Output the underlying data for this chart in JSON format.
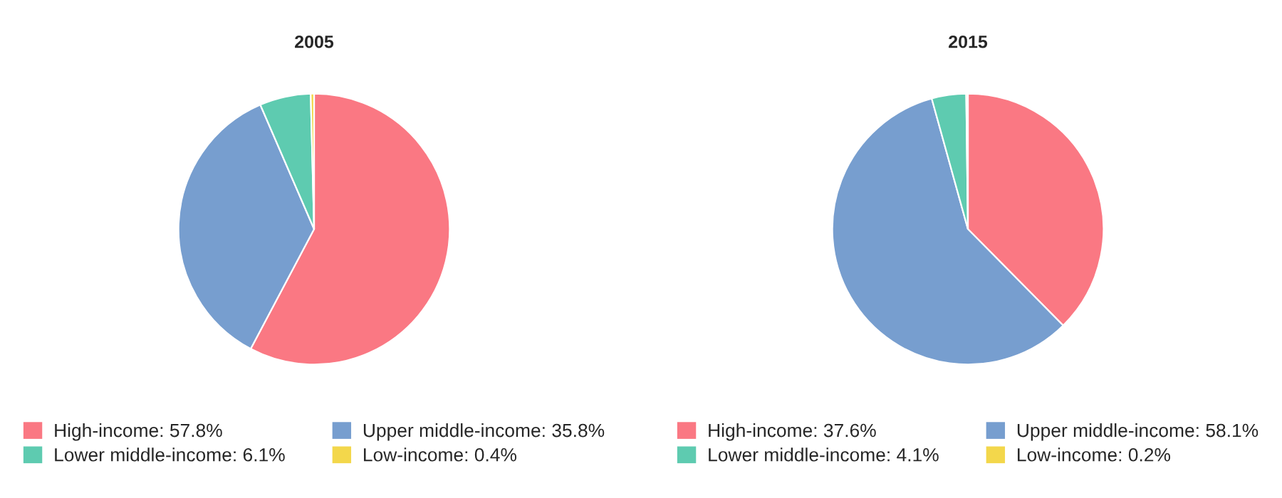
{
  "chart_data": [
    {
      "type": "pie",
      "title": "2005",
      "categories": [
        "High-income: 57.8%",
        "Upper middle-income: 35.8%",
        "Lower middle-income: 6.1%",
        "Low-income: 0.4%"
      ],
      "values": [
        57.8,
        35.8,
        6.1,
        0.4
      ],
      "colors": [
        "#fa7883",
        "#779ecf",
        "#5ecbb0",
        "#f3d74b"
      ],
      "legend": "bottom"
    },
    {
      "type": "pie",
      "title": "2015",
      "categories": [
        "High-income: 37.6%",
        "Upper middle-income: 58.1%",
        "Lower middle-income: 4.1%",
        "Low-income: 0.2%"
      ],
      "values": [
        37.6,
        58.1,
        4.1,
        0.2
      ],
      "colors": [
        "#fa7883",
        "#779ecf",
        "#5ecbb0",
        "#f3d74b"
      ],
      "legend": "bottom"
    }
  ]
}
